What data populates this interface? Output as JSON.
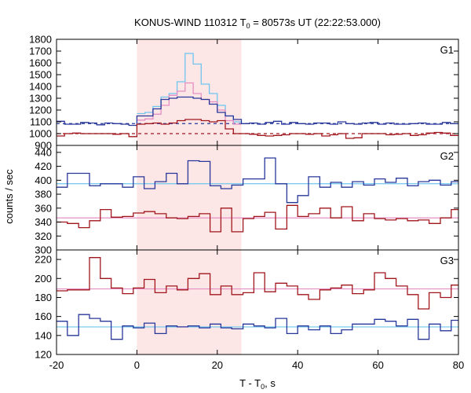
{
  "chart_data": {
    "type": "line",
    "title": {
      "main": "KONUS-WIND 110312 T",
      "sub": "0",
      "rest": " = 80573s UT (22:22:53.000)"
    },
    "xlabel": {
      "main": "T - T",
      "sub": "0",
      "rest": ", s"
    },
    "ylabel": "counts / sec",
    "xlim": [
      -20,
      80
    ],
    "x_ticks": [
      "-20",
      "0",
      "20",
      "40",
      "60",
      "80"
    ],
    "x_tick_values": [
      -20,
      0,
      20,
      40,
      60,
      80
    ],
    "highlight_interval": [
      0,
      26
    ],
    "colors": {
      "shade": "#fde6e6",
      "series_red": "#a0161c",
      "series_blue": "#28379a",
      "bg_pink": "#e48fc3",
      "bg_cyan": "#6ec6ef",
      "sum_blue": "#6ec6ef",
      "sum_pink": "#e48fc3"
    },
    "panels": [
      {
        "label": "G1",
        "ylim": [
          900,
          1800
        ],
        "y_ticks": [
          "900",
          "1000",
          "1100",
          "1200",
          "1300",
          "1400",
          "1500",
          "1600",
          "1700",
          "1800"
        ],
        "y_tick_values": [
          900,
          1000,
          1100,
          1200,
          1300,
          1400,
          1500,
          1600,
          1700,
          1800
        ],
        "background_levels": {
          "blue": 1085,
          "red": 1000,
          "style": "dashed"
        },
        "x_edges": [
          -20,
          -18,
          -16,
          -14,
          -12,
          -10,
          -8,
          -6,
          -4,
          -2,
          0,
          2,
          4,
          6,
          8,
          10,
          12,
          14,
          16,
          18,
          20,
          22,
          24,
          26,
          28,
          30,
          32,
          34,
          36,
          38,
          40,
          42,
          44,
          46,
          48,
          50,
          52,
          54,
          56,
          58,
          60,
          62,
          64,
          66,
          68,
          70,
          72,
          74,
          76,
          78,
          80
        ],
        "series": [
          {
            "key": "blue",
            "values": [
              1105,
              1080,
              1080,
              1095,
              1090,
              1075,
              1090,
              1085,
              1080,
              1070,
              1150,
              1150,
              1210,
              1290,
              1300,
              1310,
              1310,
              1300,
              1290,
              1250,
              1180,
              1150,
              1120,
              1085,
              1090,
              1080,
              1095,
              1105,
              1080,
              1095,
              1085,
              1080,
              1090,
              1090,
              1080,
              1100,
              1085,
              1080,
              1090,
              1095,
              1080,
              1090,
              1080,
              1080,
              1085,
              1090,
              1080,
              1080,
              1095,
              1085
            ]
          },
          {
            "key": "red",
            "values": [
              980,
              1000,
              1005,
              1000,
              1000,
              1000,
              1000,
              995,
              1000,
              975,
              1080,
              1085,
              1090,
              1080,
              1090,
              1110,
              1120,
              1120,
              1110,
              1100,
              1110,
              1040,
              1000,
              1000,
              995,
              985,
              980,
              985,
              990,
              1000,
              1000,
              995,
              1000,
              980,
              990,
              1000,
              960,
              965,
              1000,
              1000,
              1000,
              990,
              995,
              1000,
              985,
              990,
              1005,
              1010,
              1005,
              985
            ]
          },
          {
            "key": "sum_blue",
            "values": [
              null,
              null,
              null,
              null,
              null,
              null,
              null,
              null,
              null,
              null,
              1170,
              1180,
              1230,
              1310,
              1340,
              1440,
              1680,
              1590,
              1420,
              1340,
              1240,
              1150,
              1100,
              null,
              null,
              null,
              null,
              null,
              null,
              null,
              null,
              null,
              null,
              null,
              null,
              null,
              null,
              null,
              null,
              null,
              null,
              null,
              null,
              null,
              null,
              null,
              null,
              null,
              null,
              null
            ]
          },
          {
            "key": "sum_pink",
            "values": [
              null,
              null,
              null,
              null,
              null,
              null,
              null,
              null,
              null,
              null,
              1115,
              1125,
              1165,
              1240,
              1325,
              1360,
              1430,
              1340,
              1290,
              1270,
              1200,
              1110,
              1080,
              null,
              null,
              null,
              null,
              null,
              null,
              null,
              null,
              null,
              null,
              null,
              null,
              null,
              null,
              null,
              null,
              null,
              null,
              null,
              null,
              null,
              null,
              null,
              null,
              null,
              null,
              null
            ]
          }
        ]
      },
      {
        "label": "G2",
        "ylim": [
          300,
          450
        ],
        "y_ticks": [
          "300",
          "320",
          "340",
          "360",
          "380",
          "400",
          "420",
          "440"
        ],
        "y_tick_values": [
          300,
          320,
          340,
          360,
          380,
          400,
          420,
          440
        ],
        "background_levels": {
          "blue": 395,
          "red": 346,
          "style": "solid"
        },
        "x_edges": [
          -20,
          -17.3,
          -14.5,
          -11.8,
          -9.1,
          -6.4,
          -3.6,
          -0.9,
          1.8,
          4.5,
          7.3,
          10,
          12.7,
          15.5,
          18.2,
          20.9,
          23.6,
          26.4,
          29.1,
          31.8,
          34.5,
          37.3,
          40,
          42.7,
          45.5,
          48.2,
          50.9,
          53.6,
          56.4,
          59.1,
          61.8,
          64.5,
          67.3,
          70,
          72.7,
          75.5,
          78.2,
          80
        ],
        "series": [
          {
            "key": "blue",
            "values": [
              390,
              410,
              410,
              392,
              395,
              395,
              390,
              405,
              388,
              398,
              410,
              395,
              428,
              427,
              392,
              388,
              393,
              402,
              402,
              432,
              395,
              368,
              378,
              405,
              390,
              397,
              390,
              398,
              393,
              402,
              397,
              403,
              392,
              398,
              400,
              393,
              398
            ]
          },
          {
            "key": "red",
            "values": [
              340,
              338,
              332,
              342,
              358,
              347,
              348,
              353,
              355,
              352,
              346,
              345,
              348,
              352,
              326,
              360,
              326,
              345,
              348,
              354,
              330,
              364,
              348,
              352,
              360,
              346,
              362,
              342,
              352,
              345,
              343,
              345,
              342,
              343,
              338,
              346,
              358
            ]
          }
        ]
      },
      {
        "label": "G3",
        "ylim": [
          120,
          230
        ],
        "y_ticks": [
          "120",
          "140",
          "160",
          "180",
          "200",
          "220"
        ],
        "y_tick_values": [
          120,
          140,
          160,
          180,
          200,
          220
        ],
        "background_levels": {
          "blue": 149,
          "red": 189,
          "style": "solid"
        },
        "x_edges": [
          -20,
          -17.3,
          -14.5,
          -11.8,
          -9.1,
          -6.4,
          -3.6,
          -0.9,
          1.8,
          4.5,
          7.3,
          10,
          12.7,
          15.5,
          18.2,
          20.9,
          23.6,
          26.4,
          29.1,
          31.8,
          34.5,
          37.3,
          40,
          42.7,
          45.5,
          48.2,
          50.9,
          53.6,
          56.4,
          59.1,
          61.8,
          64.5,
          67.3,
          70,
          72.7,
          75.5,
          78.2,
          80
        ],
        "series": [
          {
            "key": "blue",
            "values": [
              155,
              140,
              162,
              158,
              155,
              136,
              150,
              148,
              153,
              142,
              150,
              149,
              150,
              148,
              152,
              148,
              147,
              152,
              150,
              148,
              158,
              142,
              150,
              146,
              150,
              142,
              146,
              152,
              152,
              157,
              155,
              150,
              157,
              136,
              152,
              145,
              156
            ]
          },
          {
            "key": "red",
            "values": [
              187,
              188,
              188,
              222,
              200,
              190,
              184,
              190,
              199,
              185,
              192,
              188,
              200,
              205,
              183,
              192,
              183,
              185,
              206,
              186,
              195,
              192,
              183,
              178,
              188,
              190,
              193,
              184,
              188,
              206,
              200,
              192,
              183,
              168,
              185,
              180,
              193
            ]
          }
        ]
      }
    ]
  }
}
